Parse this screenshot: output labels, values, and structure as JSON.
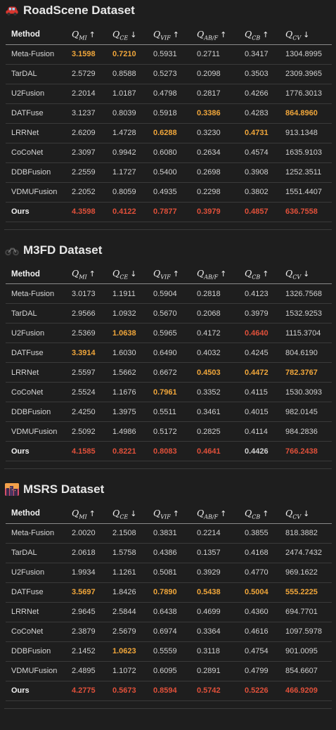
{
  "colors": {
    "best": "#e0503a",
    "second": "#f0a63a",
    "background": "#1e1e1e"
  },
  "header": {
    "method": "Method",
    "metrics": [
      {
        "base": "Q",
        "sub": "MI",
        "arrow": "↑"
      },
      {
        "base": "Q",
        "sub": "CE",
        "arrow": "↓"
      },
      {
        "base": "Q",
        "sub": "VIF",
        "arrow": "↑"
      },
      {
        "base": "Q",
        "sub": "AB/F",
        "arrow": "↑"
      },
      {
        "base": "Q",
        "sub": "CB",
        "arrow": "↑"
      },
      {
        "base": "Q",
        "sub": "CV",
        "arrow": "↓"
      }
    ]
  },
  "sections": [
    {
      "title": "RoadScene Dataset",
      "icon": "car-icon",
      "rows": [
        {
          "method": "Meta-Fusion",
          "values": [
            "3.1598",
            "0.7210",
            "0.5931",
            "0.2711",
            "0.3417",
            "1304.8995"
          ],
          "hl": [
            "second",
            "second",
            "",
            "",
            "",
            ""
          ]
        },
        {
          "method": "TarDAL",
          "values": [
            "2.5729",
            "0.8588",
            "0.5273",
            "0.2098",
            "0.3503",
            "2309.3965"
          ],
          "hl": [
            "",
            "",
            "",
            "",
            "",
            ""
          ]
        },
        {
          "method": "U2Fusion",
          "values": [
            "2.2014",
            "1.0187",
            "0.4798",
            "0.2817",
            "0.4266",
            "1776.3013"
          ],
          "hl": [
            "",
            "",
            "",
            "",
            "",
            ""
          ]
        },
        {
          "method": "DATFuse",
          "values": [
            "3.1237",
            "0.8039",
            "0.5918",
            "0.3386",
            "0.4283",
            "864.8960"
          ],
          "hl": [
            "",
            "",
            "",
            "second",
            "",
            "second"
          ]
        },
        {
          "method": "LRRNet",
          "values": [
            "2.6209",
            "1.4728",
            "0.6288",
            "0.3230",
            "0.4731",
            "913.1348"
          ],
          "hl": [
            "",
            "",
            "second",
            "",
            "second",
            ""
          ]
        },
        {
          "method": "CoCoNet",
          "values": [
            "2.3097",
            "0.9942",
            "0.6080",
            "0.2634",
            "0.4574",
            "1635.9103"
          ],
          "hl": [
            "",
            "",
            "",
            "",
            "",
            ""
          ]
        },
        {
          "method": "DDBFusion",
          "values": [
            "2.2559",
            "1.1727",
            "0.5400",
            "0.2698",
            "0.3908",
            "1252.3511"
          ],
          "hl": [
            "",
            "",
            "",
            "",
            "",
            ""
          ]
        },
        {
          "method": "VDMUFusion",
          "values": [
            "2.2052",
            "0.8059",
            "0.4935",
            "0.2298",
            "0.3802",
            "1551.4407"
          ],
          "hl": [
            "",
            "",
            "",
            "",
            "",
            ""
          ]
        },
        {
          "method": "Ours",
          "values": [
            "4.3598",
            "0.4122",
            "0.7877",
            "0.3979",
            "0.4857",
            "636.7558"
          ],
          "hl": [
            "best",
            "best",
            "best",
            "best",
            "best",
            "best"
          ],
          "ours": true
        }
      ]
    },
    {
      "title": "M3FD Dataset",
      "icon": "motorcycle-icon",
      "rows": [
        {
          "method": "Meta-Fusion",
          "values": [
            "3.0173",
            "1.1911",
            "0.5904",
            "0.2818",
            "0.4123",
            "1326.7568"
          ],
          "hl": [
            "",
            "",
            "",
            "",
            "",
            ""
          ]
        },
        {
          "method": "TarDAL",
          "values": [
            "2.9566",
            "1.0932",
            "0.5670",
            "0.2068",
            "0.3979",
            "1532.9253"
          ],
          "hl": [
            "",
            "",
            "",
            "",
            "",
            ""
          ]
        },
        {
          "method": "U2Fusion",
          "values": [
            "2.5369",
            "1.0638",
            "0.5965",
            "0.4172",
            "0.4640",
            "1115.3704"
          ],
          "hl": [
            "",
            "second",
            "",
            "",
            "best",
            ""
          ]
        },
        {
          "method": "DATFuse",
          "values": [
            "3.3914",
            "1.6030",
            "0.6490",
            "0.4032",
            "0.4245",
            "804.6190"
          ],
          "hl": [
            "second",
            "",
            "",
            "",
            "",
            ""
          ]
        },
        {
          "method": "LRRNet",
          "values": [
            "2.5597",
            "1.5662",
            "0.6672",
            "0.4503",
            "0.4472",
            "782.3767"
          ],
          "hl": [
            "",
            "",
            "",
            "second",
            "second",
            "second"
          ]
        },
        {
          "method": "CoCoNet",
          "values": [
            "2.5524",
            "1.1676",
            "0.7961",
            "0.3352",
            "0.4115",
            "1530.3093"
          ],
          "hl": [
            "",
            "",
            "second",
            "",
            "",
            ""
          ]
        },
        {
          "method": "DDBFusion",
          "values": [
            "2.4250",
            "1.3975",
            "0.5511",
            "0.3461",
            "0.4015",
            "982.0145"
          ],
          "hl": [
            "",
            "",
            "",
            "",
            "",
            ""
          ]
        },
        {
          "method": "VDMUFusion",
          "values": [
            "2.5092",
            "1.4986",
            "0.5172",
            "0.2825",
            "0.4114",
            "984.2836"
          ],
          "hl": [
            "",
            "",
            "",
            "",
            "",
            ""
          ]
        },
        {
          "method": "Ours",
          "values": [
            "4.1585",
            "0.8221",
            "0.8083",
            "0.4641",
            "0.4426",
            "766.2438"
          ],
          "hl": [
            "best",
            "best",
            "best",
            "best",
            "",
            "best"
          ],
          "ours": true
        }
      ]
    },
    {
      "title": "MSRS Dataset",
      "icon": "city-night-icon",
      "rows": [
        {
          "method": "Meta-Fusion",
          "values": [
            "2.0020",
            "2.1508",
            "0.3831",
            "0.2214",
            "0.3855",
            "818.3882"
          ],
          "hl": [
            "",
            "",
            "",
            "",
            "",
            ""
          ]
        },
        {
          "method": "TarDAL",
          "values": [
            "2.0618",
            "1.5758",
            "0.4386",
            "0.1357",
            "0.4168",
            "2474.7432"
          ],
          "hl": [
            "",
            "",
            "",
            "",
            "",
            ""
          ]
        },
        {
          "method": "U2Fusion",
          "values": [
            "1.9934",
            "1.1261",
            "0.5081",
            "0.3929",
            "0.4770",
            "969.1622"
          ],
          "hl": [
            "",
            "",
            "",
            "",
            "",
            ""
          ]
        },
        {
          "method": "DATFuse",
          "values": [
            "3.5697",
            "1.8426",
            "0.7890",
            "0.5438",
            "0.5004",
            "555.2225"
          ],
          "hl": [
            "second",
            "",
            "second",
            "second",
            "second",
            "second"
          ]
        },
        {
          "method": "LRRNet",
          "values": [
            "2.9645",
            "2.5844",
            "0.6438",
            "0.4699",
            "0.4360",
            "694.7701"
          ],
          "hl": [
            "",
            "",
            "",
            "",
            "",
            ""
          ]
        },
        {
          "method": "CoCoNet",
          "values": [
            "2.3879",
            "2.5679",
            "0.6974",
            "0.3364",
            "0.4616",
            "1097.5978"
          ],
          "hl": [
            "",
            "",
            "",
            "",
            "",
            ""
          ]
        },
        {
          "method": "DDBFusion",
          "values": [
            "2.1452",
            "1.0623",
            "0.5559",
            "0.3118",
            "0.4754",
            "901.0095"
          ],
          "hl": [
            "",
            "second",
            "",
            "",
            "",
            ""
          ]
        },
        {
          "method": "VDMUFusion",
          "values": [
            "2.4895",
            "1.1072",
            "0.6095",
            "0.2891",
            "0.4799",
            "854.6607"
          ],
          "hl": [
            "",
            "",
            "",
            "",
            "",
            ""
          ]
        },
        {
          "method": "Ours",
          "values": [
            "4.2775",
            "0.5673",
            "0.8594",
            "0.5742",
            "0.5226",
            "466.9209"
          ],
          "hl": [
            "best",
            "best",
            "best",
            "best",
            "best",
            "best"
          ],
          "ours": true
        }
      ]
    }
  ]
}
